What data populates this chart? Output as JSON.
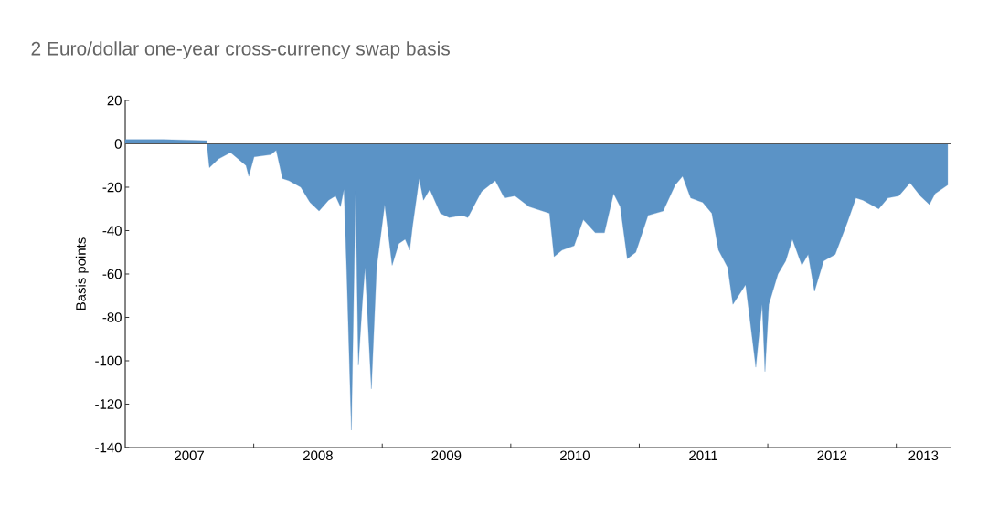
{
  "chart_data": {
    "type": "area",
    "title": "2 Euro/dollar one-year cross-currency swap basis",
    "ylabel": "Basis points",
    "color": "#5b93c6",
    "x": [
      "2007-01-01",
      "2007-04-20",
      "2007-08-20",
      "2007-08-28",
      "2007-09-23",
      "2007-10-27",
      "2007-12-10",
      "2007-12-18",
      "2008-01-02",
      "2008-02-19",
      "2008-03-05",
      "2008-03-23",
      "2008-04-10",
      "2008-05-14",
      "2008-06-09",
      "2008-07-05",
      "2008-08-01",
      "2008-08-21",
      "2008-09-04",
      "2008-09-14",
      "2008-09-22",
      "2008-10-05",
      "2008-10-17",
      "2008-10-25",
      "2008-11-05",
      "2008-11-13",
      "2008-12-01",
      "2008-12-16",
      "2009-01-08",
      "2009-01-29",
      "2009-02-17",
      "2009-03-07",
      "2009-03-20",
      "2009-03-28",
      "2009-04-16",
      "2009-04-28",
      "2009-05-16",
      "2009-06-15",
      "2009-07-10",
      "2009-08-16",
      "2009-09-01",
      "2009-10-10",
      "2009-11-18",
      "2009-12-14",
      "2010-01-13",
      "2010-02-22",
      "2010-04-21",
      "2010-05-04",
      "2010-05-27",
      "2010-06-30",
      "2010-07-26",
      "2010-08-29",
      "2010-09-24",
      "2010-10-20",
      "2010-11-08",
      "2010-11-28",
      "2010-12-22",
      "2011-01-26",
      "2011-03-10",
      "2011-04-13",
      "2011-05-04",
      "2011-05-27",
      "2011-06-30",
      "2011-07-26",
      "2011-08-14",
      "2011-09-09",
      "2011-09-24",
      "2011-10-30",
      "2011-11-28",
      "2011-12-16",
      "2011-12-24",
      "2012-01-04",
      "2012-01-30",
      "2012-02-21",
      "2012-03-11",
      "2012-04-07",
      "2012-04-25",
      "2012-05-13",
      "2012-06-08",
      "2012-07-11",
      "2012-08-15",
      "2012-09-08",
      "2012-09-28",
      "2012-11-12",
      "2012-12-08",
      "2013-01-08",
      "2013-02-09",
      "2013-03-10",
      "2013-04-05",
      "2013-04-21",
      "2013-05-27"
    ],
    "values": [
      2,
      2,
      1.5,
      -11,
      -7,
      -4,
      -10,
      -15,
      -6,
      -5,
      -3,
      -16,
      -17,
      -20,
      -27,
      -31,
      -26,
      -24,
      -29,
      -21,
      -60,
      -132,
      -22,
      -102,
      -74,
      -57,
      -113,
      -57,
      -28,
      -56,
      -46,
      -44,
      -49,
      -38,
      -16,
      -26,
      -21,
      -32,
      -34,
      -33,
      -34,
      -22,
      -17,
      -25,
      -24,
      -29,
      -32,
      -52,
      -49,
      -47,
      -35,
      -41,
      -41,
      -23,
      -29,
      -53,
      -50,
      -33,
      -31,
      -19,
      -15,
      -25,
      -27,
      -32,
      -49,
      -57,
      -74,
      -65,
      -103,
      -74,
      -105,
      -74,
      -60,
      -54,
      -44,
      -56,
      -51,
      -68,
      -54,
      -51,
      -36,
      -25,
      -26,
      -30,
      -25,
      -24,
      -18,
      -24,
      -28,
      -23,
      -19
    ],
    "xlim": [
      "2007-01-01",
      "2013-06-04"
    ],
    "xticks": [
      {
        "value": "2007-07-02",
        "label": "2007"
      },
      {
        "value": "2008-01-01",
        "label": null
      },
      {
        "value": "2008-07-02",
        "label": "2008"
      },
      {
        "value": "2009-01-01",
        "label": null
      },
      {
        "value": "2009-07-02",
        "label": "2009"
      },
      {
        "value": "2010-01-01",
        "label": null
      },
      {
        "value": "2010-07-02",
        "label": "2010"
      },
      {
        "value": "2011-01-01",
        "label": null
      },
      {
        "value": "2011-07-02",
        "label": "2011"
      },
      {
        "value": "2012-01-01",
        "label": null
      },
      {
        "value": "2012-07-02",
        "label": "2012"
      },
      {
        "value": "2013-01-01",
        "label": null
      },
      {
        "value": "2013-03-19",
        "label": "2013"
      }
    ],
    "ylim": [
      -140,
      20
    ],
    "yticks": [
      -140,
      -120,
      -100,
      -80,
      -60,
      -40,
      -20,
      0,
      20
    ],
    "ref_lines": [
      {
        "axis": "y",
        "value": 0,
        "color": "#555555"
      }
    ]
  }
}
